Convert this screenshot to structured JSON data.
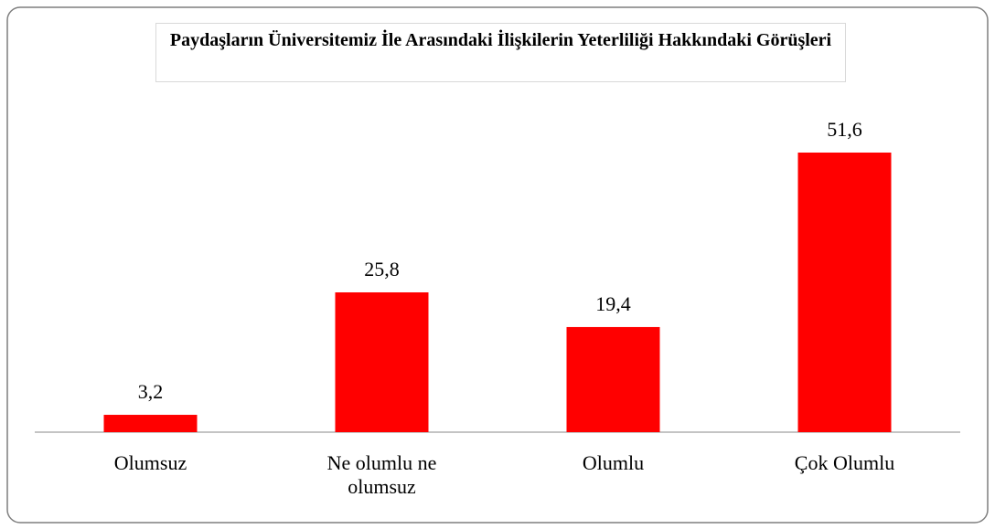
{
  "chart_data": {
    "type": "bar",
    "title": "Paydaşların Üniversitemiz İle Arasındaki İlişkilerin Yeterliliği Hakkındaki Görüşleri",
    "categories": [
      "Olumsuz",
      "Ne olumlu ne olumsuz",
      "Olumlu",
      "Çok Olumlu"
    ],
    "values": [
      3.2,
      25.8,
      19.4,
      51.6
    ],
    "value_labels": [
      "3,2",
      "25,8",
      "19,4",
      "51,6"
    ],
    "color": "#ff0000"
  }
}
